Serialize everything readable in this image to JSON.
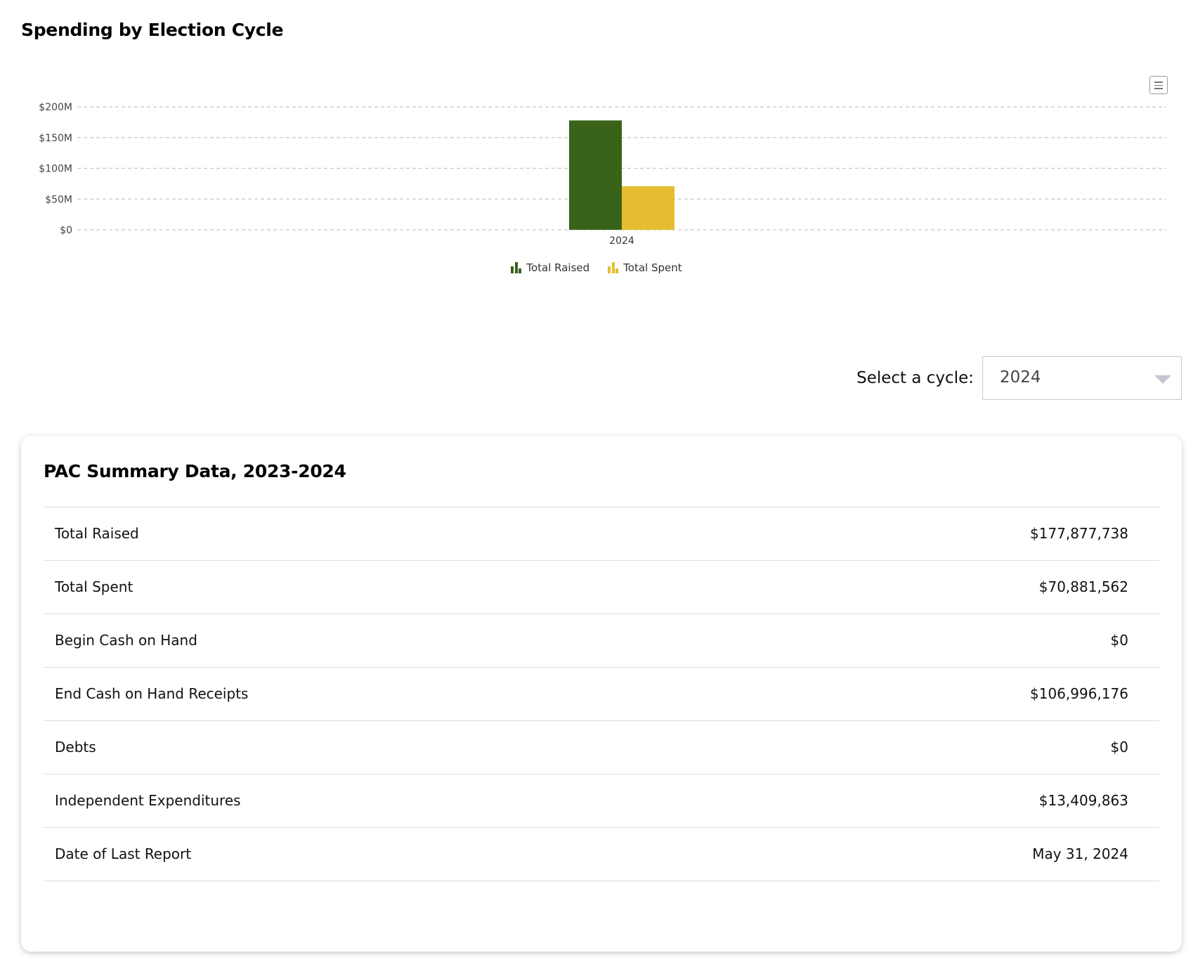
{
  "page": {
    "title": "Spending by Election Cycle"
  },
  "chart_data": {
    "type": "bar",
    "categories": [
      "2024"
    ],
    "series": [
      {
        "name": "Total Raised",
        "values": [
          177877738
        ],
        "color": "#3a631a"
      },
      {
        "name": "Total Spent",
        "values": [
          70881562
        ],
        "color": "#e6bd30"
      }
    ],
    "ylim": [
      0,
      200000000
    ],
    "yticks": [
      0,
      50000000,
      100000000,
      150000000,
      200000000
    ],
    "ytick_labels": [
      "$0",
      "$50M",
      "$100M",
      "$150M",
      "$200M"
    ],
    "grid": true,
    "legend_position": "bottom-center"
  },
  "chart_menu": {
    "icon": "hamburger-menu-icon"
  },
  "cycle_selector": {
    "label": "Select a cycle:",
    "selected": "2024"
  },
  "summary": {
    "title": "PAC Summary Data, 2023-2024",
    "rows": [
      {
        "label": "Total Raised",
        "value": "$177,877,738"
      },
      {
        "label": "Total Spent",
        "value": "$70,881,562"
      },
      {
        "label": "Begin Cash on Hand",
        "value": "$0"
      },
      {
        "label": "End Cash on Hand Receipts",
        "value": "$106,996,176"
      },
      {
        "label": "Debts",
        "value": "$0"
      },
      {
        "label": "Independent Expenditures",
        "value": "$13,409,863"
      },
      {
        "label": "Date of Last Report",
        "value": "May 31, 2024"
      }
    ]
  }
}
